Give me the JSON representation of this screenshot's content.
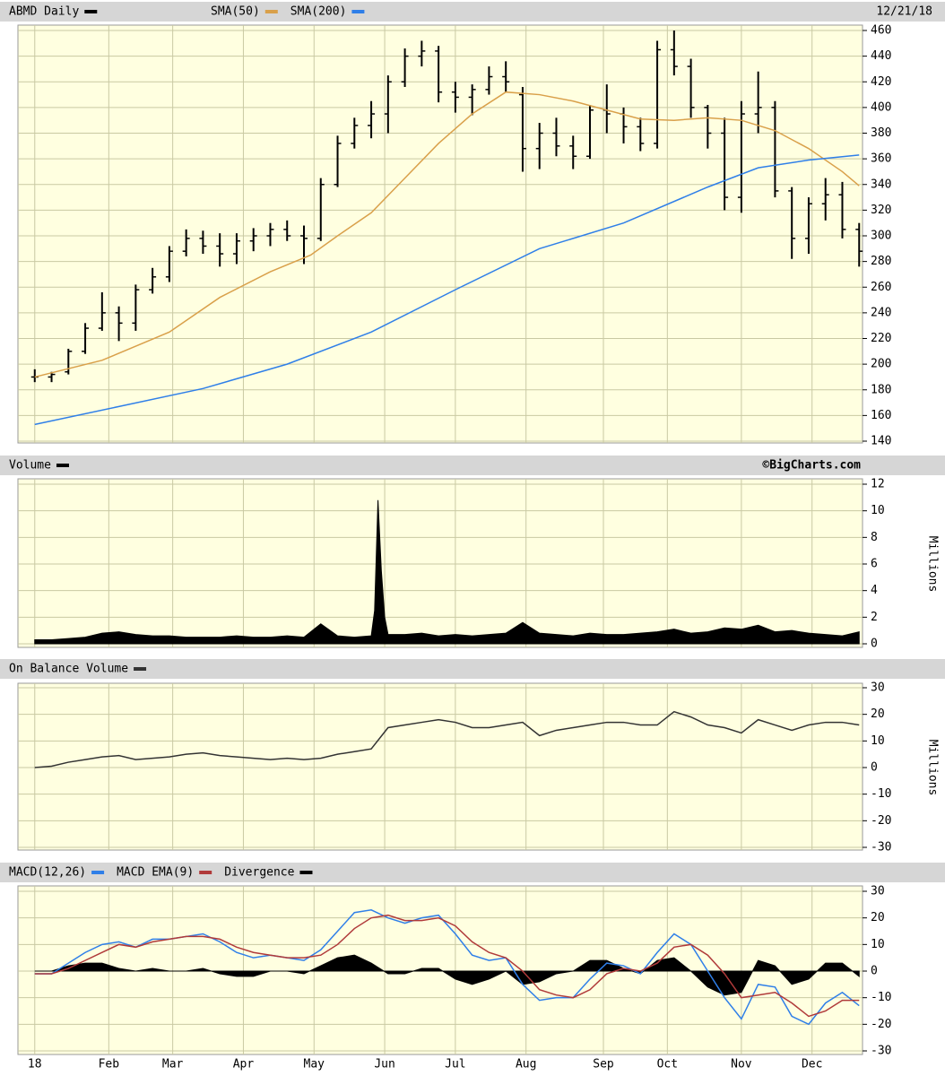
{
  "chart_data": [
    {
      "type": "ohlc",
      "title": "ABMD Daily",
      "date": "12/21/18",
      "color": "#000000",
      "x": [
        0,
        5,
        10,
        15,
        20,
        25,
        30,
        35,
        40,
        45,
        50,
        55,
        60,
        65,
        70,
        75,
        80,
        85,
        90,
        95,
        100,
        105,
        110,
        115,
        120,
        125,
        130,
        135,
        140,
        145,
        150,
        155,
        160,
        165,
        170,
        175,
        180,
        185,
        190,
        195,
        200,
        205,
        210,
        215,
        220,
        225,
        230,
        235,
        240,
        245
      ],
      "open": [
        190,
        190,
        194,
        210,
        228,
        240,
        232,
        258,
        268,
        288,
        298,
        292,
        286,
        296,
        300,
        305,
        300,
        298,
        340,
        372,
        386,
        395,
        420,
        440,
        444,
        412,
        408,
        414,
        424,
        410,
        368,
        380,
        370,
        362,
        398,
        395,
        385,
        372,
        445,
        432,
        400,
        380,
        330,
        395,
        400,
        335,
        298,
        325,
        332,
        305
      ],
      "high": [
        196,
        194,
        212,
        232,
        256,
        245,
        262,
        275,
        292,
        305,
        304,
        302,
        302,
        306,
        310,
        312,
        308,
        345,
        378,
        392,
        405,
        425,
        446,
        452,
        448,
        420,
        418,
        432,
        436,
        416,
        388,
        392,
        378,
        402,
        418,
        400,
        392,
        452,
        460,
        438,
        402,
        392,
        405,
        428,
        405,
        338,
        330,
        345,
        342,
        310
      ],
      "low": [
        186,
        186,
        192,
        208,
        226,
        218,
        226,
        255,
        264,
        284,
        286,
        276,
        278,
        288,
        292,
        296,
        278,
        296,
        338,
        368,
        376,
        380,
        416,
        432,
        404,
        396,
        394,
        410,
        412,
        350,
        352,
        362,
        352,
        360,
        380,
        372,
        366,
        368,
        425,
        392,
        368,
        320,
        318,
        380,
        330,
        282,
        286,
        312,
        298,
        276
      ],
      "close": [
        190,
        192,
        210,
        228,
        240,
        232,
        258,
        268,
        288,
        298,
        292,
        286,
        296,
        300,
        305,
        300,
        298,
        340,
        372,
        386,
        395,
        420,
        440,
        444,
        412,
        408,
        414,
        424,
        420,
        368,
        380,
        370,
        362,
        398,
        395,
        385,
        372,
        445,
        432,
        400,
        380,
        330,
        395,
        400,
        335,
        298,
        325,
        332,
        305,
        288
      ],
      "lines": [
        {
          "name": "SMA(50)",
          "color": "#d9a04a",
          "x": [
            0,
            20,
            40,
            55,
            70,
            82,
            90,
            100,
            110,
            120,
            130,
            140,
            150,
            160,
            170,
            180,
            190,
            200,
            210,
            220,
            230,
            240,
            245
          ],
          "values": [
            190,
            203,
            225,
            252,
            272,
            285,
            300,
            318,
            345,
            372,
            395,
            412,
            410,
            405,
            398,
            391,
            390,
            392,
            390,
            382,
            368,
            350,
            339
          ]
        },
        {
          "name": "SMA(200)",
          "color": "#2f7fe8",
          "x": [
            0,
            25,
            50,
            75,
            100,
            125,
            150,
            175,
            200,
            215,
            230,
            245
          ],
          "values": [
            153,
            167,
            181,
            200,
            225,
            258,
            290,
            310,
            338,
            353,
            359,
            363
          ]
        }
      ],
      "xlim": [
        -5,
        246
      ],
      "ylim": [
        140,
        460
      ],
      "yticks": [
        140,
        160,
        180,
        200,
        220,
        240,
        260,
        280,
        300,
        320,
        340,
        360,
        380,
        400,
        420,
        440,
        460
      ]
    },
    {
      "type": "area",
      "title": "Volume",
      "credit": "©BigCharts.com",
      "y_label": "Millions",
      "color": "#000000",
      "x": [
        0,
        5,
        10,
        15,
        20,
        25,
        30,
        35,
        40,
        45,
        50,
        55,
        60,
        65,
        70,
        75,
        80,
        85,
        90,
        95,
        100,
        101,
        102,
        103,
        104,
        105,
        110,
        115,
        120,
        125,
        130,
        135,
        140,
        145,
        150,
        155,
        160,
        165,
        170,
        175,
        180,
        185,
        190,
        195,
        200,
        205,
        210,
        215,
        220,
        225,
        230,
        235,
        240,
        245
      ],
      "values": [
        0.3,
        0.3,
        0.4,
        0.5,
        0.8,
        0.9,
        0.7,
        0.6,
        0.6,
        0.5,
        0.5,
        0.5,
        0.6,
        0.5,
        0.5,
        0.6,
        0.5,
        1.5,
        0.6,
        0.5,
        0.6,
        2.5,
        10.8,
        5.5,
        2,
        0.7,
        0.7,
        0.8,
        0.6,
        0.7,
        0.6,
        0.7,
        0.8,
        1.6,
        0.8,
        0.7,
        0.6,
        0.8,
        0.7,
        0.7,
        0.8,
        0.9,
        1.1,
        0.8,
        0.9,
        1.2,
        1.1,
        1.4,
        0.9,
        1.0,
        0.8,
        0.7,
        0.6,
        0.9
      ],
      "xlim": [
        -5,
        246
      ],
      "ylim": [
        0,
        12
      ],
      "yticks": [
        0,
        2,
        4,
        6,
        8,
        10,
        12
      ]
    },
    {
      "type": "line",
      "title": "On Balance Volume",
      "y_label": "Millions",
      "color": "#333333",
      "x": [
        0,
        5,
        10,
        15,
        20,
        25,
        30,
        35,
        40,
        45,
        50,
        55,
        60,
        65,
        70,
        75,
        80,
        85,
        90,
        95,
        100,
        105,
        110,
        115,
        120,
        125,
        130,
        135,
        140,
        145,
        150,
        155,
        160,
        165,
        170,
        175,
        180,
        185,
        190,
        195,
        200,
        205,
        210,
        215,
        220,
        225,
        230,
        235,
        240,
        245
      ],
      "values": [
        0,
        0.5,
        2,
        3,
        4,
        4.5,
        3,
        3.5,
        4,
        5,
        5.5,
        4.5,
        4,
        3.5,
        3,
        3.5,
        3,
        3.5,
        5,
        6,
        7,
        15,
        16,
        17,
        18,
        17,
        15,
        15,
        16,
        17,
        12,
        14,
        15,
        16,
        17,
        17,
        16,
        16,
        21,
        19,
        16,
        15,
        13,
        18,
        16,
        14,
        16,
        17,
        17,
        16
      ],
      "xlim": [
        -5,
        246
      ],
      "ylim": [
        -30,
        30
      ],
      "yticks": [
        -30,
        -20,
        -10,
        0,
        10,
        20,
        30
      ]
    },
    {
      "type": "macd",
      "x": [
        0,
        5,
        10,
        15,
        20,
        25,
        30,
        35,
        40,
        45,
        50,
        55,
        60,
        65,
        70,
        75,
        80,
        85,
        90,
        95,
        100,
        105,
        110,
        115,
        120,
        125,
        130,
        135,
        140,
        145,
        150,
        155,
        160,
        165,
        170,
        175,
        180,
        185,
        190,
        195,
        200,
        205,
        210,
        215,
        220,
        225,
        230,
        235,
        240,
        245
      ],
      "series": [
        {
          "name": "MACD(12,26)",
          "color": "#2f7fe8",
          "style": "line",
          "values": [
            -1,
            -1,
            3,
            7,
            10,
            11,
            9,
            12,
            12,
            13,
            14,
            11,
            7,
            5,
            6,
            5,
            4,
            8,
            15,
            22,
            23,
            20,
            18,
            20,
            21,
            14,
            6,
            4,
            5,
            -5,
            -11,
            -10,
            -10,
            -3,
            3,
            2,
            -1,
            7,
            14,
            10,
            0,
            -10,
            -18,
            -5,
            -6,
            -17,
            -20,
            -12,
            -8,
            -13
          ]
        },
        {
          "name": "MACD EMA(9)",
          "color": "#b03a3a",
          "style": "line",
          "values": [
            -1,
            -1,
            1,
            4,
            7,
            10,
            9,
            11,
            12,
            13,
            13,
            12,
            9,
            7,
            6,
            5,
            5,
            6,
            10,
            16,
            20,
            21,
            19,
            19,
            20,
            17,
            11,
            7,
            5,
            0,
            -7,
            -9,
            -10,
            -7,
            -1,
            1,
            0,
            3,
            9,
            10,
            6,
            -1,
            -10,
            -9,
            -8,
            -12,
            -17,
            -15,
            -11,
            -11
          ]
        },
        {
          "name": "Divergence",
          "color": "#000000",
          "style": "area",
          "values": [
            0,
            0,
            2,
            3,
            3,
            1,
            0,
            1,
            0,
            0,
            1,
            -1,
            -2,
            -2,
            0,
            0,
            -1,
            2,
            5,
            6,
            3,
            -1,
            -1,
            1,
            1,
            -3,
            -5,
            -3,
            0,
            -5,
            -4,
            -1,
            0,
            4,
            4,
            1,
            -1,
            4,
            5,
            0,
            -6,
            -9,
            -8,
            4,
            2,
            -5,
            -3,
            3,
            3,
            -2
          ]
        }
      ],
      "xlim": [
        -5,
        246
      ],
      "ylim": [
        -30,
        30
      ],
      "yticks": [
        -30,
        -20,
        -10,
        0,
        10,
        20,
        30
      ],
      "xticks": [
        {
          "value": 0,
          "label": "18"
        },
        {
          "value": 22,
          "label": "Feb"
        },
        {
          "value": 41,
          "label": "Mar"
        },
        {
          "value": 62,
          "label": "Apr"
        },
        {
          "value": 83,
          "label": "May"
        },
        {
          "value": 104,
          "label": "Jun"
        },
        {
          "value": 125,
          "label": "Jul"
        },
        {
          "value": 146,
          "label": "Aug"
        },
        {
          "value": 169,
          "label": "Sep"
        },
        {
          "value": 188,
          "label": "Oct"
        },
        {
          "value": 210,
          "label": "Nov"
        },
        {
          "value": 231,
          "label": "Dec"
        }
      ]
    }
  ]
}
